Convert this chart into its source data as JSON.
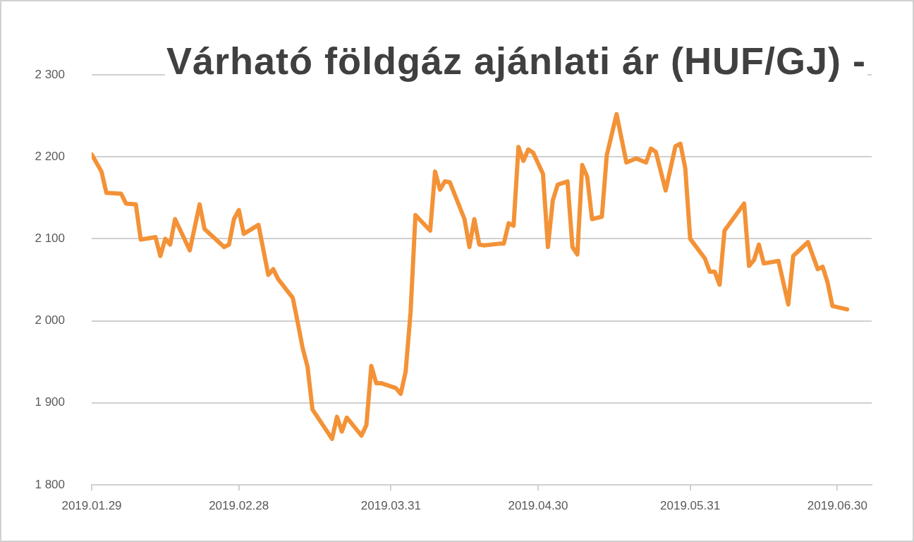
{
  "chart_data": {
    "type": "line",
    "title": "Várható földgáz ajánlati ár (HUF/GJ) -",
    "x": [
      "2019-01-29",
      "2019-01-31",
      "2019-02-01",
      "2019-02-04",
      "2019-02-05",
      "2019-02-07",
      "2019-02-08",
      "2019-02-11",
      "2019-02-12",
      "2019-02-13",
      "2019-02-14",
      "2019-02-15",
      "2019-02-18",
      "2019-02-20",
      "2019-02-21",
      "2019-02-25",
      "2019-02-26",
      "2019-02-27",
      "2019-02-28",
      "2019-03-01",
      "2019-03-04",
      "2019-03-06",
      "2019-03-07",
      "2019-03-08",
      "2019-03-11",
      "2019-03-12",
      "2019-03-13",
      "2019-03-14",
      "2019-03-15",
      "2019-03-19",
      "2019-03-20",
      "2019-03-21",
      "2019-03-22",
      "2019-03-25",
      "2019-03-26",
      "2019-03-27",
      "2019-03-28",
      "2019-03-29",
      "2019-04-01",
      "2019-04-02",
      "2019-04-03",
      "2019-04-04",
      "2019-04-05",
      "2019-04-08",
      "2019-04-09",
      "2019-04-10",
      "2019-04-11",
      "2019-04-12",
      "2019-04-15",
      "2019-04-16",
      "2019-04-17",
      "2019-04-18",
      "2019-04-19",
      "2019-04-22",
      "2019-04-23",
      "2019-04-24",
      "2019-04-25",
      "2019-04-26",
      "2019-04-27",
      "2019-04-28",
      "2019-04-29",
      "2019-05-01",
      "2019-05-02",
      "2019-05-03",
      "2019-05-04",
      "2019-05-06",
      "2019-05-07",
      "2019-05-08",
      "2019-05-09",
      "2019-05-10",
      "2019-05-11",
      "2019-05-13",
      "2019-05-14",
      "2019-05-16",
      "2019-05-18",
      "2019-05-20",
      "2019-05-22",
      "2019-05-23",
      "2019-05-24",
      "2019-05-26",
      "2019-05-28",
      "2019-05-29",
      "2019-05-30",
      "2019-05-31",
      "2019-06-03",
      "2019-06-04",
      "2019-06-05",
      "2019-06-06",
      "2019-06-07",
      "2019-06-11",
      "2019-06-12",
      "2019-06-13",
      "2019-06-14",
      "2019-06-15",
      "2019-06-18",
      "2019-06-20",
      "2019-06-21",
      "2019-06-24",
      "2019-06-26",
      "2019-06-27",
      "2019-06-28",
      "2019-06-29",
      "2019-07-02"
    ],
    "series": [
      {
        "color": "#f39237",
        "values": [
          2203,
          2182,
          2156,
          2155,
          2143,
          2142,
          2099,
          2102,
          2079,
          2100,
          2093,
          2124,
          2086,
          2142,
          2112,
          2090,
          2093,
          2124,
          2135,
          2106,
          2117,
          2056,
          2063,
          2051,
          2028,
          1998,
          1967,
          1944,
          1892,
          1856,
          1883,
          1865,
          1882,
          1860,
          1873,
          1945,
          1924,
          1924,
          1918,
          1911,
          1938,
          2010,
          2129,
          2110,
          2182,
          2160,
          2170,
          2169,
          2124,
          2090,
          2124,
          2093,
          2092,
          2094,
          2094,
          2119,
          2116,
          2212,
          2195,
          2209,
          2205,
          2179,
          2090,
          2147,
          2166,
          2170,
          2090,
          2081,
          2190,
          2176,
          2124,
          2127,
          2202,
          2252,
          2193,
          2198,
          2193,
          2210,
          2206,
          2159,
          2213,
          2216,
          2186,
          2100,
          2076,
          2060,
          2060,
          2044,
          2110,
          2143,
          2067,
          2074,
          2093,
          2070,
          2073,
          2020,
          2079,
          2096,
          2063,
          2066,
          2047,
          2018,
          2014
        ]
      }
    ],
    "xlim": [
      "2019-01-29",
      "2019-07-07"
    ],
    "xticks": [
      {
        "value": "2019-01-29",
        "label": "2019.01.29"
      },
      {
        "value": "2019-02-28",
        "label": "2019.02.28"
      },
      {
        "value": "2019-03-31",
        "label": "2019.03.31"
      },
      {
        "value": "2019-04-30",
        "label": "2019.04.30"
      },
      {
        "value": "2019-05-31",
        "label": "2019.05.31"
      },
      {
        "value": "2019-06-30",
        "label": "2019.06.30"
      }
    ],
    "ylim": [
      1800,
      2300
    ],
    "yticks": [
      {
        "value": 1800,
        "label": "1 800"
      },
      {
        "value": 1900,
        "label": "1 900"
      },
      {
        "value": 2000,
        "label": "2 000"
      },
      {
        "value": 2100,
        "label": "2 100"
      },
      {
        "value": 2200,
        "label": "2 200"
      },
      {
        "value": 2300,
        "label": "2 300"
      }
    ],
    "grid": "y"
  }
}
